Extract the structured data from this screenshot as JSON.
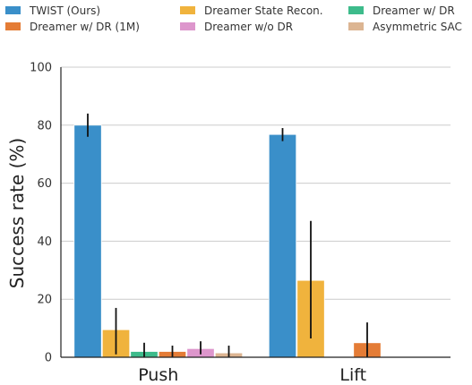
{
  "chart_data": {
    "type": "bar",
    "title": "",
    "xlabel": "",
    "ylabel": "Success rate (%)",
    "ylim": [
      0,
      100
    ],
    "yticks": [
      0,
      20,
      40,
      60,
      80,
      100
    ],
    "grid": "horizontal",
    "legend_position": "top",
    "categories": [
      "Push",
      "Lift"
    ],
    "series": [
      {
        "name": "TWIST (Ours)",
        "color": "#3a8fc9",
        "values": [
          80,
          76.8
        ],
        "err_low": [
          76,
          74.5
        ],
        "err_high": [
          84,
          79
        ]
      },
      {
        "name": "Dreamer State Recon.",
        "color": "#f0b33d",
        "values": [
          9.5,
          26.5
        ],
        "err_low": [
          1,
          6.5
        ],
        "err_high": [
          17,
          47
        ]
      },
      {
        "name": "Dreamer w/ DR",
        "color": "#3dbb8b",
        "values": [
          2,
          0
        ],
        "err_low": [
          0,
          0
        ],
        "err_high": [
          5,
          0
        ]
      },
      {
        "name": "Dreamer w/ DR (1M)",
        "color": "#e47c36",
        "values": [
          2,
          5
        ],
        "err_low": [
          0,
          0
        ],
        "err_high": [
          4,
          12
        ]
      },
      {
        "name": "Dreamer w/o DR",
        "color": "#dd96cc",
        "values": [
          3,
          0
        ],
        "err_low": [
          1,
          0
        ],
        "err_high": [
          5.5,
          0
        ]
      },
      {
        "name": "Asymmetric SAC",
        "color": "#dcb592",
        "values": [
          1.5,
          0
        ],
        "err_low": [
          0,
          0
        ],
        "err_high": [
          4,
          0
        ]
      }
    ]
  }
}
